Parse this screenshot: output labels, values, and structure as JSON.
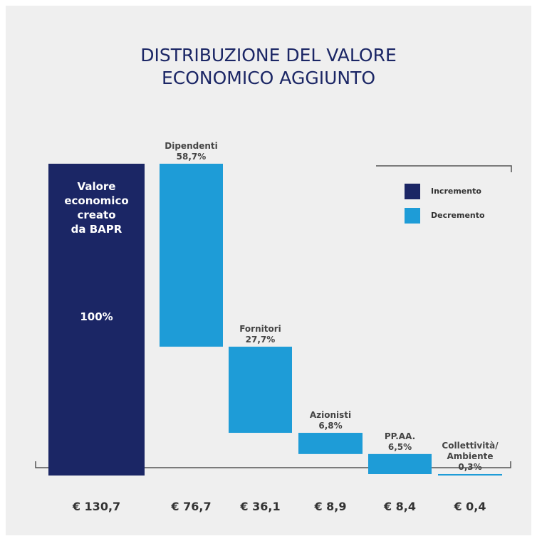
{
  "chart_data": {
    "type": "waterfall",
    "title": "DISTRIBUZIONE DEL VALORE\nECONOMICO AGGIUNTO",
    "categories": [
      "Valore\neconomico\ncreato\nda BAPR",
      "Dipendenti",
      "Fornitori",
      "Azionisti",
      "PP.AA.",
      "Collettività/\nAmbiente"
    ],
    "measure": [
      "absolute",
      "relative",
      "relative",
      "relative",
      "relative",
      "relative"
    ],
    "values": [
      130.7,
      76.7,
      36.1,
      8.9,
      8.4,
      0.4
    ],
    "value_labels": [
      "€ 130,7",
      "€ 76,7",
      "€ 36,1",
      "€ 8,9",
      "€ 8,4",
      "€ 0,4"
    ],
    "percentages": [
      100,
      58.7,
      27.7,
      6.8,
      6.5,
      0.3
    ],
    "percentage_labels": [
      "100%",
      "58,7%",
      "27,7%",
      "6,8%",
      "6,5%",
      "0,3%"
    ],
    "legend": [
      {
        "label": "Incremento",
        "color": "#1b2665"
      },
      {
        "label": "Decremento",
        "color": "#1e9cd7"
      }
    ]
  }
}
